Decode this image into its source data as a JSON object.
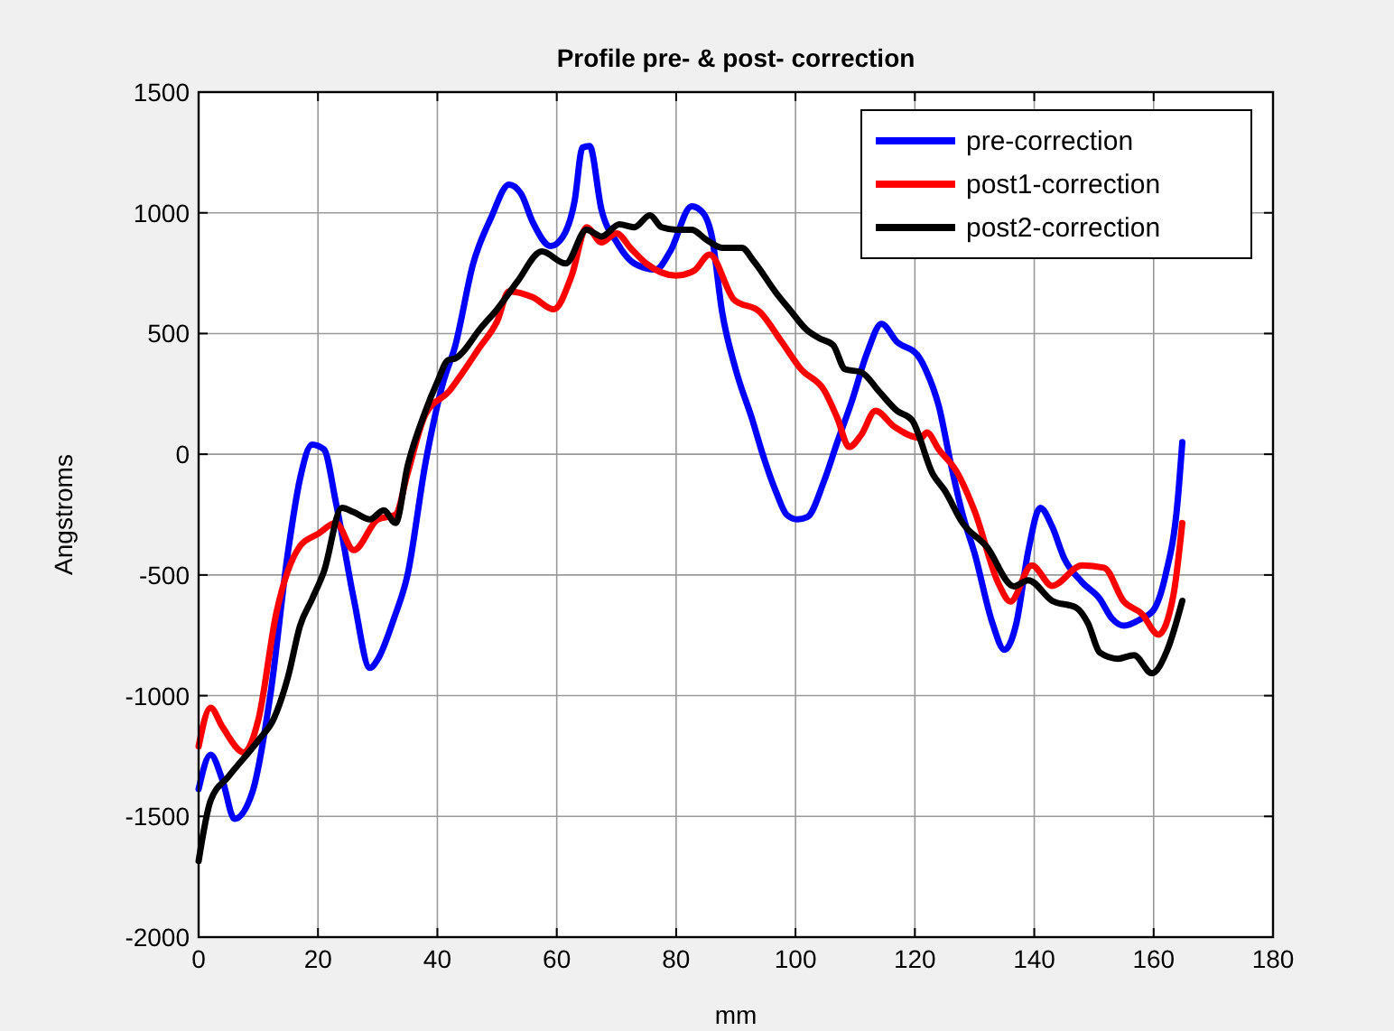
{
  "chart_data": {
    "type": "line",
    "title": "Profile pre- & post- correction",
    "xlabel": "mm",
    "ylabel": "Angstroms",
    "xlim": [
      0,
      180
    ],
    "xticks": [
      0,
      20,
      40,
      60,
      80,
      100,
      120,
      140,
      160,
      180
    ],
    "ylim": [
      -2000,
      1500
    ],
    "yticks": [
      -2000,
      -1500,
      -1000,
      -500,
      0,
      500,
      1000,
      1500
    ],
    "grid": true,
    "legend": "top right",
    "line_style": "solid",
    "marker": "none",
    "series": [
      {
        "name": "pre-correction",
        "color": "#0000ff",
        "x": [
          0,
          2,
          4,
          6,
          9,
          12,
          15,
          17,
          19,
          21,
          23,
          26,
          28.7,
          30,
          32.7,
          35,
          38,
          41,
          43,
          46,
          49,
          52,
          54,
          56,
          59,
          61,
          63,
          64.3,
          65.5,
          67.5,
          70,
          73,
          76.6,
          79,
          82.6,
          84.5,
          86,
          87.7,
          90,
          92.8,
          94.5,
          96.8,
          98.5,
          100.3,
          102,
          104.8,
          107,
          109.4,
          112,
          114.4,
          117,
          120.4,
          122,
          124,
          126,
          128,
          130,
          133,
          135,
          137,
          139,
          141,
          143,
          145,
          148,
          151,
          153,
          155,
          158,
          160,
          162,
          164,
          164.8
        ],
        "values": [
          -1387,
          -1245,
          -1350,
          -1510,
          -1400,
          -1000,
          -400,
          -100,
          40,
          20,
          -200,
          -600,
          -885,
          -850,
          -682,
          -500,
          -37,
          300,
          450,
          790,
          980,
          1117,
          1080,
          960,
          862,
          900,
          1050,
          1270,
          1277,
          1012,
          880,
          790,
          765,
          840,
          1027,
          1000,
          900,
          590,
          350,
          140,
          0,
          -160,
          -250,
          -270,
          -260,
          -110,
          50,
          217,
          420,
          540,
          465,
          412,
          340,
          200,
          -37,
          -250,
          -410,
          -700,
          -810,
          -700,
          -400,
          -222,
          -300,
          -430,
          -530,
          -600,
          -680,
          -710,
          -680,
          -645,
          -500,
          -200,
          50
        ]
      },
      {
        "name": "post1-correction",
        "color": "#ff0000",
        "x": [
          0,
          2,
          4,
          7.6,
          10,
          13,
          17,
          20,
          23,
          26,
          30,
          33,
          35,
          38,
          42,
          44,
          47,
          50,
          52,
          56,
          59.5,
          62.5,
          65,
          67.5,
          70,
          72.5,
          75,
          80,
          83,
          85.6,
          89.7,
          94,
          97.7,
          101,
          104.8,
          107,
          109,
          111,
          113.4,
          116.5,
          121,
          122,
          124,
          127,
          130,
          134,
          136,
          139.6,
          143,
          148,
          151.7,
          155,
          158,
          160.8,
          163.3,
          164.8
        ],
        "values": [
          -1210,
          -1050,
          -1130,
          -1235,
          -1100,
          -660,
          -380,
          -330,
          -285,
          -397,
          -270,
          -250,
          -80,
          165,
          262,
          330,
          440,
          550,
          675,
          650,
          600,
          740,
          940,
          877,
          915,
          850,
          790,
          740,
          760,
          827,
          640,
          590,
          465,
          350,
          265,
          150,
          30,
          80,
          180,
          115,
          67,
          90,
          20,
          -72,
          -235,
          -535,
          -610,
          -460,
          -545,
          -460,
          -470,
          -610,
          -660,
          -747,
          -585,
          -285
        ]
      },
      {
        "name": "post2-correction",
        "color": "#000000",
        "x": [
          0,
          2,
          5,
          10,
          12.6,
          15,
          17,
          19,
          21,
          24,
          26,
          28.7,
          31,
          33,
          35,
          37.8,
          40,
          41.8,
          43,
          47.4,
          50,
          53.4,
          57.5,
          61.5,
          65,
          67.5,
          70.5,
          73,
          75.6,
          77.6,
          80,
          82.6,
          85,
          87.7,
          91,
          93,
          96.8,
          99,
          101.8,
          104,
          106.3,
          108.3,
          111,
          114,
          117,
          119.5,
          123,
          125,
          128,
          132,
          136.6,
          139,
          143,
          147,
          149,
          151,
          154,
          156.7,
          159.7,
          162.3,
          164.8
        ],
        "values": [
          -1685,
          -1435,
          -1335,
          -1185,
          -1095,
          -920,
          -710,
          -600,
          -485,
          -222,
          -240,
          -270,
          -232,
          -285,
          -50,
          165,
          300,
          390,
          397,
          527,
          600,
          715,
          840,
          790,
          930,
          902,
          952,
          940,
          990,
          940,
          930,
          930,
          890,
          855,
          855,
          800,
          667,
          600,
          517,
          480,
          452,
          352,
          340,
          260,
          180,
          142,
          -82,
          -150,
          -285,
          -382,
          -547,
          -522,
          -607,
          -635,
          -700,
          -822,
          -847,
          -832,
          -907,
          -810,
          -607
        ]
      }
    ]
  }
}
